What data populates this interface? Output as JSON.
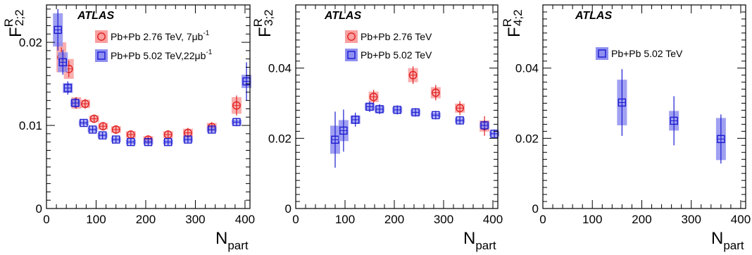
{
  "colors": {
    "red_fill": "#f9a0a0",
    "red_line": "#e02020",
    "blue_fill": "#8f8ff0",
    "blue_line": "#1a1ad0",
    "black": "#000000"
  },
  "chart_data": [
    {
      "type": "scatter",
      "brand": "ATLAS",
      "ylabel": {
        "main": "F",
        "sup": "R",
        "sub": "2;2"
      },
      "xlabel": {
        "main": "N",
        "sub": "part"
      },
      "xlim": [
        0,
        410
      ],
      "ylim": [
        0,
        0.0245
      ],
      "xticks": [
        0,
        100,
        200,
        300,
        400
      ],
      "yticks": [
        0,
        0.01,
        0.02
      ],
      "ytick_labels": [
        "0",
        "0.01",
        "0.02"
      ],
      "series": [
        {
          "name": "Pb+Pb 2.76 TeV, 7μb",
          "name_sup": "-1",
          "marker": "circle",
          "color": "red",
          "points": [
            {
              "x": 30,
              "y": 0.0182,
              "stat": 0.0012,
              "sys": 0.0018
            },
            {
              "x": 45,
              "y": 0.0168,
              "stat": 0.001,
              "sys": 0.0012
            },
            {
              "x": 60,
              "y": 0.0127,
              "stat": 0.0007,
              "sys": 0.0007
            },
            {
              "x": 78,
              "y": 0.0126,
              "stat": 0.0006,
              "sys": 0.0005
            },
            {
              "x": 96,
              "y": 0.0108,
              "stat": 0.0005,
              "sys": 0.0004
            },
            {
              "x": 114,
              "y": 0.0099,
              "stat": 0.0005,
              "sys": 0.0004
            },
            {
              "x": 140,
              "y": 0.0095,
              "stat": 0.0005,
              "sys": 0.0004
            },
            {
              "x": 170,
              "y": 0.0089,
              "stat": 0.0005,
              "sys": 0.0004
            },
            {
              "x": 205,
              "y": 0.0083,
              "stat": 0.0005,
              "sys": 0.0004
            },
            {
              "x": 245,
              "y": 0.0089,
              "stat": 0.0005,
              "sys": 0.0004
            },
            {
              "x": 285,
              "y": 0.0091,
              "stat": 0.0006,
              "sys": 0.0005
            },
            {
              "x": 333,
              "y": 0.0098,
              "stat": 0.0006,
              "sys": 0.0005
            },
            {
              "x": 383,
              "y": 0.0124,
              "stat": 0.0012,
              "sys": 0.001
            }
          ]
        },
        {
          "name": "Pb+Pb 5.02 TeV,22μb",
          "name_sup": "-1",
          "marker": "square",
          "color": "blue",
          "points": [
            {
              "x": 23,
              "y": 0.0215,
              "stat": 0.0025,
              "sys": 0.002
            },
            {
              "x": 33,
              "y": 0.0176,
              "stat": 0.0015,
              "sys": 0.0012
            },
            {
              "x": 43,
              "y": 0.0145,
              "stat": 0.0008,
              "sys": 0.0006
            },
            {
              "x": 58,
              "y": 0.0127,
              "stat": 0.0006,
              "sys": 0.0004
            },
            {
              "x": 75,
              "y": 0.0103,
              "stat": 0.0004,
              "sys": 0.0003
            },
            {
              "x": 93,
              "y": 0.0095,
              "stat": 0.0004,
              "sys": 0.0003
            },
            {
              "x": 113,
              "y": 0.0088,
              "stat": 0.0004,
              "sys": 0.0003
            },
            {
              "x": 140,
              "y": 0.0083,
              "stat": 0.0004,
              "sys": 0.0003
            },
            {
              "x": 170,
              "y": 0.008,
              "stat": 0.0004,
              "sys": 0.0003
            },
            {
              "x": 205,
              "y": 0.008,
              "stat": 0.0004,
              "sys": 0.0003
            },
            {
              "x": 245,
              "y": 0.008,
              "stat": 0.0004,
              "sys": 0.0003
            },
            {
              "x": 285,
              "y": 0.0083,
              "stat": 0.0004,
              "sys": 0.0003
            },
            {
              "x": 333,
              "y": 0.0095,
              "stat": 0.0004,
              "sys": 0.0003
            },
            {
              "x": 383,
              "y": 0.0104,
              "stat": 0.0005,
              "sys": 0.0003
            },
            {
              "x": 403,
              "y": 0.0153,
              "stat": 0.0023,
              "sys": 0.0008
            }
          ]
        }
      ],
      "legend": {
        "placement": "top-right"
      },
      "grid": false
    },
    {
      "type": "scatter",
      "brand": "ATLAS",
      "ylabel": {
        "main": "F",
        "sup": "R",
        "sub": "3;2"
      },
      "xlabel": {
        "main": "N",
        "sub": "part"
      },
      "xlim": [
        0,
        410
      ],
      "ylim": [
        0,
        0.058
      ],
      "xticks": [
        0,
        100,
        200,
        300,
        400
      ],
      "yticks": [
        0,
        0.02,
        0.04
      ],
      "ytick_labels": [
        "0",
        "0.02",
        "0.04"
      ],
      "series": [
        {
          "name": "Pb+Pb 2.76 TeV",
          "name_sup": "",
          "marker": "circle",
          "color": "red",
          "points": [
            {
              "x": 158,
              "y": 0.0318,
              "stat": 0.002,
              "sys": 0.0015
            },
            {
              "x": 238,
              "y": 0.038,
              "stat": 0.0025,
              "sys": 0.002
            },
            {
              "x": 284,
              "y": 0.033,
              "stat": 0.0022,
              "sys": 0.0016
            },
            {
              "x": 333,
              "y": 0.0286,
              "stat": 0.002,
              "sys": 0.0013
            },
            {
              "x": 383,
              "y": 0.0235,
              "stat": 0.0028,
              "sys": 0.0016
            }
          ]
        },
        {
          "name": "Pb+Pb 5.02 TeV",
          "name_sup": "",
          "marker": "square",
          "color": "blue",
          "points": [
            {
              "x": 80,
              "y": 0.0196,
              "stat": 0.008,
              "sys": 0.004
            },
            {
              "x": 97,
              "y": 0.0222,
              "stat": 0.006,
              "sys": 0.003
            },
            {
              "x": 121,
              "y": 0.0253,
              "stat": 0.002,
              "sys": 0.0012
            },
            {
              "x": 150,
              "y": 0.029,
              "stat": 0.0015,
              "sys": 0.001
            },
            {
              "x": 170,
              "y": 0.0283,
              "stat": 0.0014,
              "sys": 0.0009
            },
            {
              "x": 206,
              "y": 0.0281,
              "stat": 0.0013,
              "sys": 0.0008
            },
            {
              "x": 243,
              "y": 0.0274,
              "stat": 0.0012,
              "sys": 0.0008
            },
            {
              "x": 284,
              "y": 0.0266,
              "stat": 0.0012,
              "sys": 0.0007
            },
            {
              "x": 333,
              "y": 0.0251,
              "stat": 0.0012,
              "sys": 0.0007
            },
            {
              "x": 383,
              "y": 0.0237,
              "stat": 0.0014,
              "sys": 0.0008
            },
            {
              "x": 403,
              "y": 0.0213,
              "stat": 0.0012,
              "sys": 0.0007
            }
          ]
        }
      ],
      "legend": {
        "placement": "top-center"
      },
      "grid": false
    },
    {
      "type": "scatter",
      "brand": "ATLAS",
      "ylabel": {
        "main": "F",
        "sup": "R",
        "sub": "4;2"
      },
      "xlabel": {
        "main": "N",
        "sub": "part"
      },
      "xlim": [
        0,
        410
      ],
      "ylim": [
        0,
        0.058
      ],
      "xticks": [
        0,
        100,
        200,
        300,
        400
      ],
      "yticks": [
        0,
        0.02,
        0.04
      ],
      "ytick_labels": [
        "0",
        "0.02",
        "0.04"
      ],
      "series": [
        {
          "name": "Pb+Pb 5.02 TeV",
          "name_sup": "",
          "marker": "square",
          "color": "blue",
          "points": [
            {
              "x": 160,
              "y": 0.0302,
              "stat": 0.0095,
              "sys": 0.0065
            },
            {
              "x": 265,
              "y": 0.025,
              "stat": 0.007,
              "sys": 0.0028
            },
            {
              "x": 360,
              "y": 0.0198,
              "stat": 0.007,
              "sys": 0.006
            }
          ]
        }
      ],
      "legend": {
        "placement": "top-center"
      },
      "grid": false
    }
  ]
}
